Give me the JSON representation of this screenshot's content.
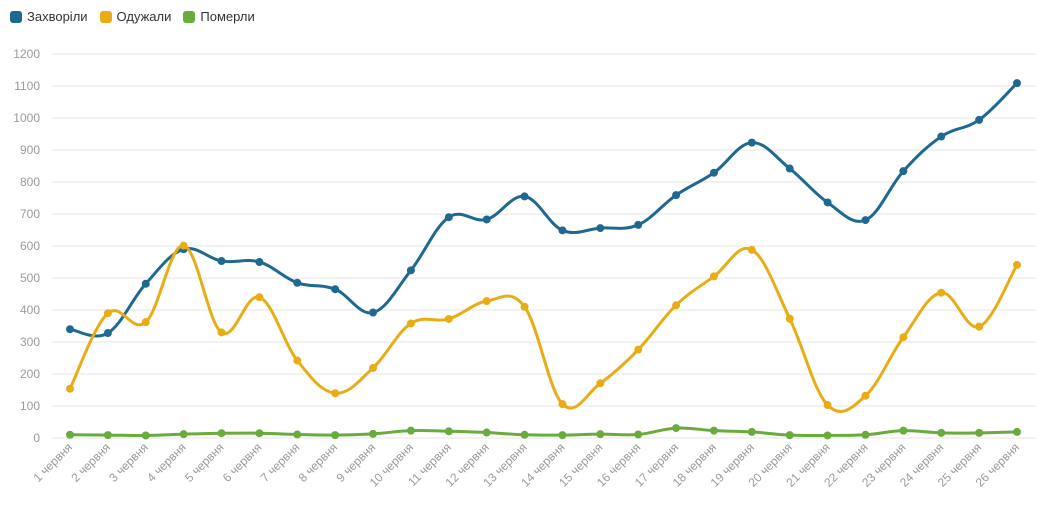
{
  "legend": [
    {
      "label": "Захворіли",
      "color": "#1f6891"
    },
    {
      "label": "Одужали",
      "color": "#e8ad15"
    },
    {
      "label": "Померли",
      "color": "#6aab3d"
    }
  ],
  "chart_data": {
    "type": "line",
    "title": "",
    "xlabel": "",
    "ylabel": "",
    "ylim": [
      0,
      1200
    ],
    "y_ticks": [
      0,
      100,
      200,
      300,
      400,
      500,
      600,
      700,
      800,
      900,
      1000,
      1100,
      1200
    ],
    "grid": true,
    "legend_position": "top-left",
    "categories": [
      "1 червня",
      "2 червня",
      "3 червня",
      "4 червня",
      "5 червня",
      "6 червня",
      "7 червня",
      "8 червня",
      "9 червня",
      "10 червня",
      "11 червня",
      "12 червня",
      "13 червня",
      "14 червня",
      "15 червня",
      "16 червня",
      "17 червня",
      "18 червня",
      "19 червня",
      "20 червня",
      "21 червня",
      "22 червня",
      "23 червня",
      "24 червня",
      "25 червня",
      "26 червня"
    ],
    "series": [
      {
        "name": "Захворіли",
        "color": "#1f6891",
        "values": [
          340,
          328,
          482,
          590,
          553,
          550,
          485,
          465,
          392,
          524,
          690,
          683,
          755,
          649,
          656,
          666,
          759,
          829,
          923,
          842,
          736,
          681,
          834,
          942,
          994,
          1109
        ]
      },
      {
        "name": "Одужали",
        "color": "#e8ad15",
        "values": [
          154,
          390,
          362,
          601,
          330,
          440,
          242,
          140,
          219,
          358,
          372,
          428,
          410,
          106,
          171,
          276,
          415,
          505,
          588,
          373,
          103,
          132,
          315,
          454,
          348,
          541
        ]
      },
      {
        "name": "Померли",
        "color": "#6aab3d",
        "values": [
          10,
          9,
          8,
          12,
          15,
          15,
          11,
          9,
          13,
          23,
          21,
          17,
          10,
          9,
          12,
          11,
          31,
          23,
          19,
          9,
          8,
          10,
          23,
          16,
          16,
          19
        ]
      }
    ]
  }
}
